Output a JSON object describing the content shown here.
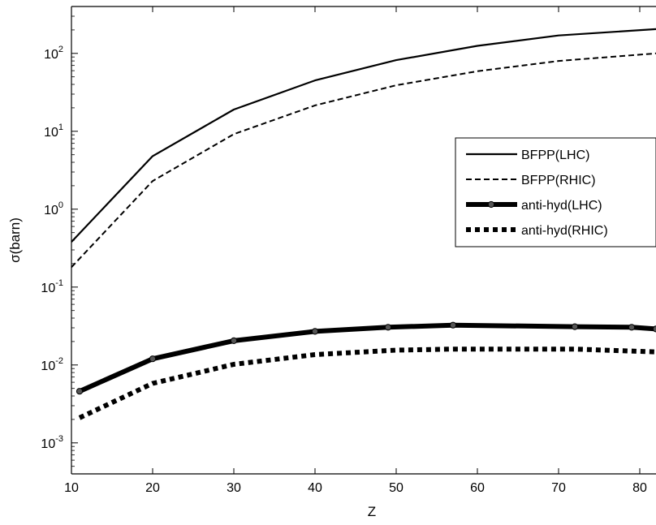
{
  "chart_data": {
    "type": "line",
    "title": "",
    "xlabel": "Z",
    "ylabel": "σ(barn)",
    "xlim": [
      10,
      82
    ],
    "ylim": [
      0.0004,
      400
    ],
    "yscale": "log",
    "grid": false,
    "legend": "center-right",
    "x_ticks": [
      10,
      20,
      30,
      40,
      50,
      60,
      70,
      80
    ],
    "y_ticks": [
      {
        "value": 0.001,
        "base": "10",
        "exp": "-3"
      },
      {
        "value": 0.01,
        "base": "10",
        "exp": "-2"
      },
      {
        "value": 0.1,
        "base": "10",
        "exp": "-1"
      },
      {
        "value": 1,
        "base": "10",
        "exp": "0"
      },
      {
        "value": 10,
        "base": "10",
        "exp": "1"
      },
      {
        "value": 100,
        "base": "10",
        "exp": "2"
      }
    ],
    "series": [
      {
        "name": "BFPP(LHC)",
        "style": "solid",
        "points": [
          [
            10,
            0.38
          ],
          [
            20,
            4.8
          ],
          [
            30,
            19
          ],
          [
            40,
            45
          ],
          [
            50,
            82
          ],
          [
            60,
            125
          ],
          [
            70,
            170
          ],
          [
            82,
            205
          ]
        ]
      },
      {
        "name": "BFPP(RHIC)",
        "style": "dashed",
        "points": [
          [
            10,
            0.18
          ],
          [
            20,
            2.3
          ],
          [
            30,
            9.2
          ],
          [
            40,
            21.5
          ],
          [
            50,
            39
          ],
          [
            60,
            59
          ],
          [
            70,
            80
          ],
          [
            82,
            100
          ]
        ]
      },
      {
        "name": "anti-hyd(LHC)",
        "style": "thick-solid-markers",
        "points": [
          [
            11,
            0.0046
          ],
          [
            20,
            0.012
          ],
          [
            30,
            0.0205
          ],
          [
            40,
            0.027
          ],
          [
            49,
            0.0305
          ],
          [
            57,
            0.0325
          ],
          [
            72,
            0.031
          ],
          [
            79,
            0.0305
          ],
          [
            82,
            0.029
          ]
        ]
      },
      {
        "name": "anti-hyd(RHIC)",
        "style": "thick-dotted",
        "points": [
          [
            11,
            0.0021
          ],
          [
            20,
            0.0058
          ],
          [
            30,
            0.0102
          ],
          [
            40,
            0.0136
          ],
          [
            50,
            0.0155
          ],
          [
            57,
            0.016
          ],
          [
            72,
            0.016
          ],
          [
            82,
            0.0147
          ]
        ]
      }
    ]
  }
}
